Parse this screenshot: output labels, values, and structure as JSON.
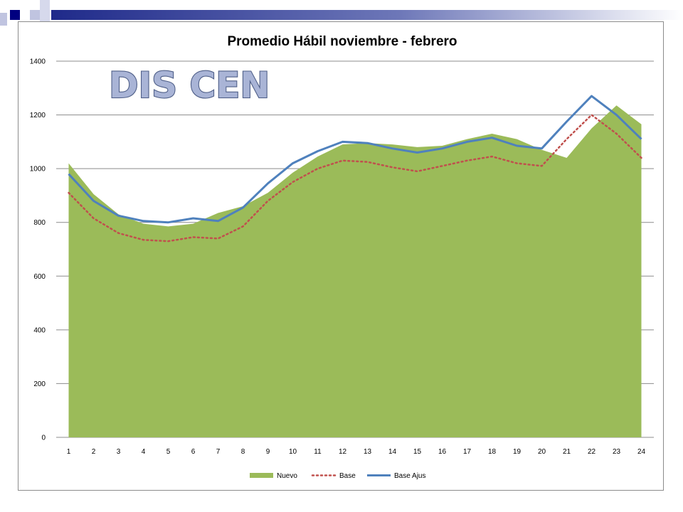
{
  "colors": {
    "nuevo": "#9bbb59",
    "base": "#c0504d",
    "base_ajus": "#4f81bd",
    "grid": "#8c8c8c",
    "deco_dark": "#000080",
    "deco_light": "#c0c4e0"
  },
  "watermark": "DIS CEN",
  "chart_data": {
    "type": "line",
    "title": "Promedio Hábil noviembre - febrero",
    "xlabel": "",
    "ylabel": "",
    "ylim": [
      0,
      1400
    ],
    "yticks": [
      "0",
      "200",
      "400",
      "600",
      "800",
      "1000",
      "1200",
      "1400"
    ],
    "grid": true,
    "legend_position": "bottom",
    "categories": [
      "1",
      "2",
      "3",
      "4",
      "5",
      "6",
      "7",
      "8",
      "9",
      "10",
      "11",
      "12",
      "13",
      "14",
      "15",
      "16",
      "17",
      "18",
      "19",
      "20",
      "21",
      "22",
      "23",
      "24"
    ],
    "series": [
      {
        "name": "Nuevo",
        "type": "area",
        "values": [
          1020,
          905,
          830,
          795,
          785,
          795,
          835,
          860,
          910,
          985,
          1045,
          1090,
          1095,
          1090,
          1080,
          1085,
          1110,
          1130,
          1110,
          1070,
          1040,
          1150,
          1235,
          1165
        ]
      },
      {
        "name": "Base",
        "type": "line",
        "style": "dotted",
        "values": [
          910,
          815,
          760,
          735,
          730,
          745,
          740,
          785,
          880,
          950,
          1000,
          1030,
          1025,
          1005,
          990,
          1010,
          1030,
          1045,
          1020,
          1010,
          1110,
          1200,
          1130,
          1040
        ]
      },
      {
        "name": "Base Ajus",
        "type": "line",
        "style": "solid",
        "values": [
          980,
          880,
          825,
          805,
          800,
          815,
          805,
          855,
          945,
          1020,
          1065,
          1100,
          1095,
          1075,
          1060,
          1075,
          1100,
          1115,
          1085,
          1075,
          1175,
          1270,
          1200,
          1110
        ]
      }
    ]
  }
}
